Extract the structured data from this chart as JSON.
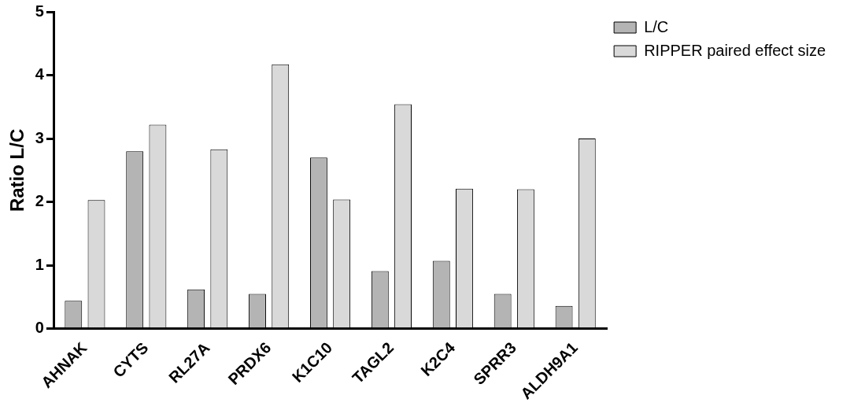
{
  "chart_data": {
    "type": "bar",
    "ylabel": "Ratio L/C",
    "categories": [
      "AHNAK",
      "CYTS",
      "RL27A",
      "PRDX6",
      "K1C10",
      "TAGL2",
      "K2C4",
      "SPRR3",
      "ALDH9A1"
    ],
    "series": [
      {
        "name": "L/C",
        "color": "#b4b4b4",
        "values": [
          0.44,
          2.8,
          0.62,
          0.55,
          2.7,
          0.91,
          1.07,
          0.55,
          0.36
        ]
      },
      {
        "name": "RIPPER paired effect size",
        "color": "#d9d9d9",
        "values": [
          2.03,
          3.22,
          2.83,
          4.17,
          2.04,
          3.54,
          2.21,
          2.2,
          3.0
        ]
      }
    ],
    "ylim": [
      0,
      5
    ],
    "yticks": [
      0,
      1,
      2,
      3,
      4,
      5
    ],
    "grid": false,
    "legend": "top right"
  }
}
